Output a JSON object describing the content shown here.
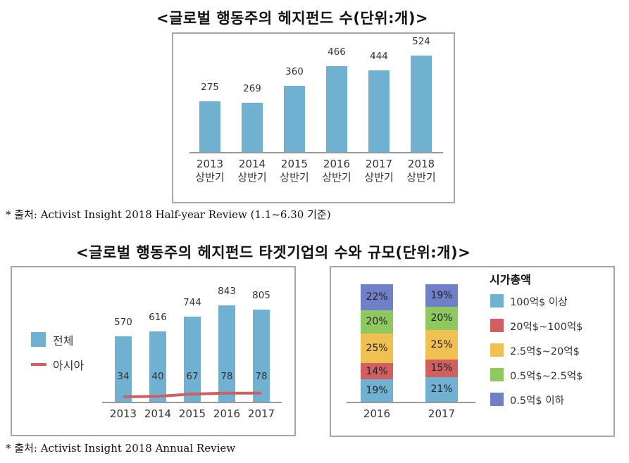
{
  "top": {
    "title": "<글로벌 행동주의 헤지펀드 수(단위:개)>",
    "source": "* 출처: Activist Insight 2018 Half-year Review (1.1~6.30 기준)"
  },
  "bottom": {
    "title": "<글로벌 행동주의 헤지펀드 타겟기업의 수와 규모(단위:개)>",
    "source": "* 출처: Activist Insight 2018 Annual Review"
  },
  "chart_data": [
    {
      "type": "bar",
      "title": "글로벌 행동주의 헤지펀드 수(단위:개)",
      "categories": [
        "2013 상반기",
        "2014 상반기",
        "2015 상반기",
        "2016 상반기",
        "2017 상반기",
        "2018 상반기"
      ],
      "category_years": [
        "2013",
        "2014",
        "2015",
        "2016",
        "2017",
        "2018"
      ],
      "category_sub": [
        "상반기",
        "상반기",
        "상반기",
        "상반기",
        "상반기",
        "상반기"
      ],
      "values": [
        275,
        269,
        360,
        466,
        444,
        524
      ],
      "labels": [
        "275",
        "269",
        "360",
        "466",
        "444",
        "524"
      ],
      "color": "#70b0d0",
      "xlabel": "",
      "ylabel": "",
      "ylim": [
        0,
        560
      ],
      "grid": false,
      "legend": "none"
    },
    {
      "type": "bar+line",
      "title": "글로벌 행동주의 헤지펀드 타겟기업의 수(단위:개)",
      "categories": [
        "2013",
        "2014",
        "2015",
        "2016",
        "2017"
      ],
      "series": [
        {
          "name": "전체",
          "type": "bar",
          "color": "#70b0d0",
          "values": [
            570,
            616,
            744,
            843,
            805
          ],
          "labels": [
            "570",
            "616",
            "744",
            "843",
            "805"
          ]
        },
        {
          "name": "아시아",
          "type": "line",
          "color": "#d06060",
          "values": [
            34,
            40,
            67,
            78,
            78
          ],
          "labels": [
            "34",
            "40",
            "67",
            "78",
            "78"
          ]
        }
      ],
      "legend_position": "left",
      "ylim": [
        0,
        900
      ],
      "grid": false
    },
    {
      "type": "stacked_bar_100",
      "title": "시가총액",
      "categories": [
        "2016",
        "2017"
      ],
      "series": [
        {
          "name": "100억$ 이상",
          "color": "#70b0d0",
          "values": [
            19,
            21
          ]
        },
        {
          "name": "20억$~100억$",
          "color": "#d06060",
          "values": [
            14,
            15
          ]
        },
        {
          "name": "2.5억$~20억$",
          "color": "#f0c050",
          "values": [
            25,
            25
          ]
        },
        {
          "name": "0.5억$~2.5억$",
          "color": "#90c860",
          "values": [
            20,
            20
          ]
        },
        {
          "name": "0.5억$ 이하",
          "color": "#7080c8",
          "values": [
            22,
            19
          ]
        }
      ],
      "unit": "%",
      "legend_title": "시가총액",
      "legend_position": "right"
    }
  ]
}
